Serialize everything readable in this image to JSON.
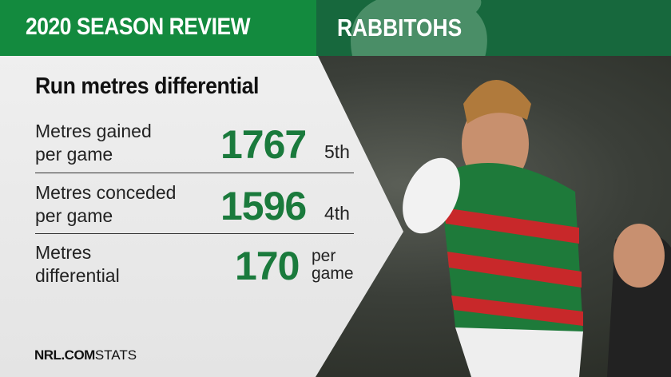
{
  "header": {
    "title": "2020 SEASON REVIEW",
    "team": "RABBITOHS",
    "colors": {
      "left": "#138a3e",
      "right": "#17683d",
      "stat": "#1a7a3c"
    }
  },
  "subtitle": "Run metres differential",
  "stats": [
    {
      "label_line1": "Metres gained",
      "label_line2": "per game",
      "value": "1767",
      "rank": "5th"
    },
    {
      "label_line1": "Metres conceded",
      "label_line2": "per game",
      "value": "1596",
      "rank": "4th"
    },
    {
      "label_line1": "Metres",
      "label_line2": "differential",
      "value": "170",
      "unit_line1": "per",
      "unit_line2": "game"
    }
  ],
  "footer": {
    "brand": "NRL.COM",
    "suffix": "STATS"
  },
  "logo_icon": "rabbit-logo"
}
